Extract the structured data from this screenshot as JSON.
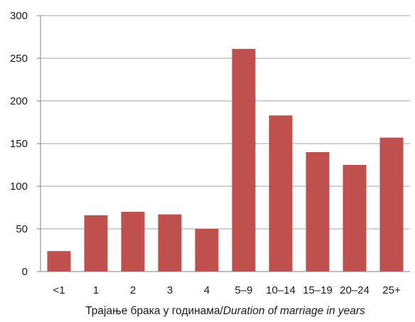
{
  "chart_data": {
    "type": "bar",
    "categories": [
      "<1",
      "1",
      "2",
      "3",
      "4",
      "5–9",
      "10–14",
      "15–19",
      "20–24",
      "25+"
    ],
    "values": [
      24,
      66,
      70,
      67,
      50,
      261,
      183,
      140,
      125,
      157
    ],
    "ylim": [
      0,
      300
    ],
    "yticks": [
      0,
      50,
      100,
      150,
      200,
      250,
      300
    ],
    "xlabel_main": "Трајање брака у годинама",
    "xlabel_sep": "/",
    "xlabel_translation": "Duration of marriage in years",
    "grid": "horizontal",
    "legend": "none",
    "colors": {
      "bar": "#c0504d",
      "grid": "#a6a6a6",
      "axis": "#808080"
    }
  }
}
